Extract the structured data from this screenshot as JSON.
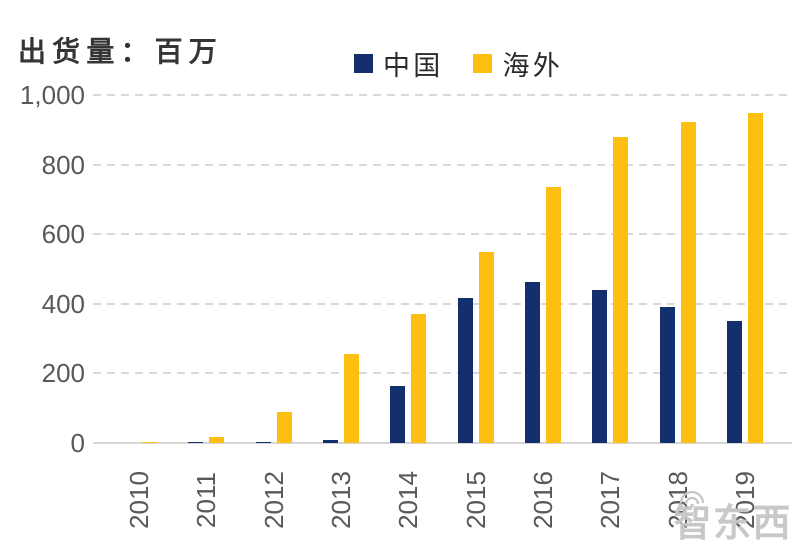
{
  "header": {
    "title": "出货量：百万"
  },
  "legend": {
    "position": "top-center",
    "items": [
      {
        "label": "中国",
        "color": "#132F6C"
      },
      {
        "label": "海外",
        "color": "#FDC010"
      }
    ]
  },
  "chart_data": {
    "type": "bar",
    "title": "出货量：百万",
    "categories": [
      "2010",
      "2011",
      "2012",
      "2013",
      "2014",
      "2015",
      "2016",
      "2017",
      "2018",
      "2019"
    ],
    "series": [
      {
        "name": "中国",
        "color": "#132F6C",
        "values": [
          0,
          2,
          3,
          10,
          165,
          418,
          463,
          440,
          390,
          352
        ]
      },
      {
        "name": "海外",
        "color": "#FDC010",
        "values": [
          2,
          18,
          90,
          255,
          370,
          550,
          737,
          880,
          923,
          947
        ]
      }
    ],
    "xlabel": "",
    "ylabel": "",
    "ylim": [
      0,
      1000
    ],
    "yticks": [
      {
        "value": 0,
        "label": "0"
      },
      {
        "value": 200,
        "label": "200"
      },
      {
        "value": 400,
        "label": "400"
      },
      {
        "value": 600,
        "label": "600"
      },
      {
        "value": 800,
        "label": "800"
      },
      {
        "value": 1000,
        "label": "1,000"
      }
    ],
    "grid": "dashed-horizontal",
    "legend_position": "top-center",
    "axis_text_color": "#595959",
    "gridline_color": "#D9D9D9",
    "xtick_rotation": -90
  },
  "watermark": {
    "text": "智东西",
    "icon": "wifi-arcs-icon"
  }
}
